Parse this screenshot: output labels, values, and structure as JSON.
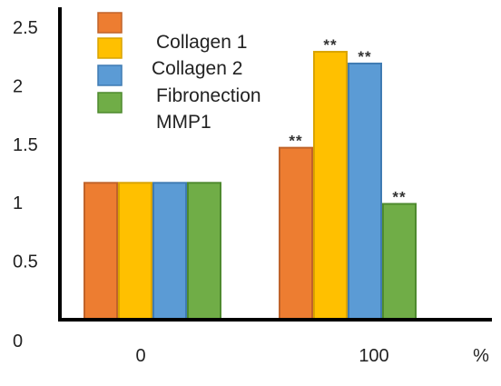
{
  "chart_data": {
    "type": "bar",
    "categories": [
      "0",
      "100"
    ],
    "series": [
      {
        "name": "Collagen 1",
        "values": [
          1.17,
          1.47
        ],
        "color": "#ED7D31",
        "border": "#C0632A"
      },
      {
        "name": "Collagen 2",
        "values": [
          1.17,
          2.29
        ],
        "color": "#FFC000",
        "border": "#D9A300"
      },
      {
        "name": "Fibronection",
        "values": [
          1.17,
          2.19
        ],
        "color": "#5B9BD5",
        "border": "#3F7BB3"
      },
      {
        "name": "MMP1",
        "values": [
          1.17,
          0.99
        ],
        "color": "#70AD47",
        "border": "#4E8A2E"
      }
    ],
    "annotations": [
      {
        "category": "100",
        "series": "Collagen 1",
        "text": "**"
      },
      {
        "category": "100",
        "series": "Collagen 2",
        "text": "**"
      },
      {
        "category": "100",
        "series": "Fibronection",
        "text": "**"
      },
      {
        "category": "100",
        "series": "MMP1",
        "text": "**"
      }
    ],
    "y_ticks": [
      "0",
      "0.5",
      "1",
      "1.5",
      "2",
      "2.5"
    ],
    "x_unit": "%",
    "ylim": [
      0,
      2.5
    ],
    "grid": false,
    "legend_position": "top-left"
  }
}
